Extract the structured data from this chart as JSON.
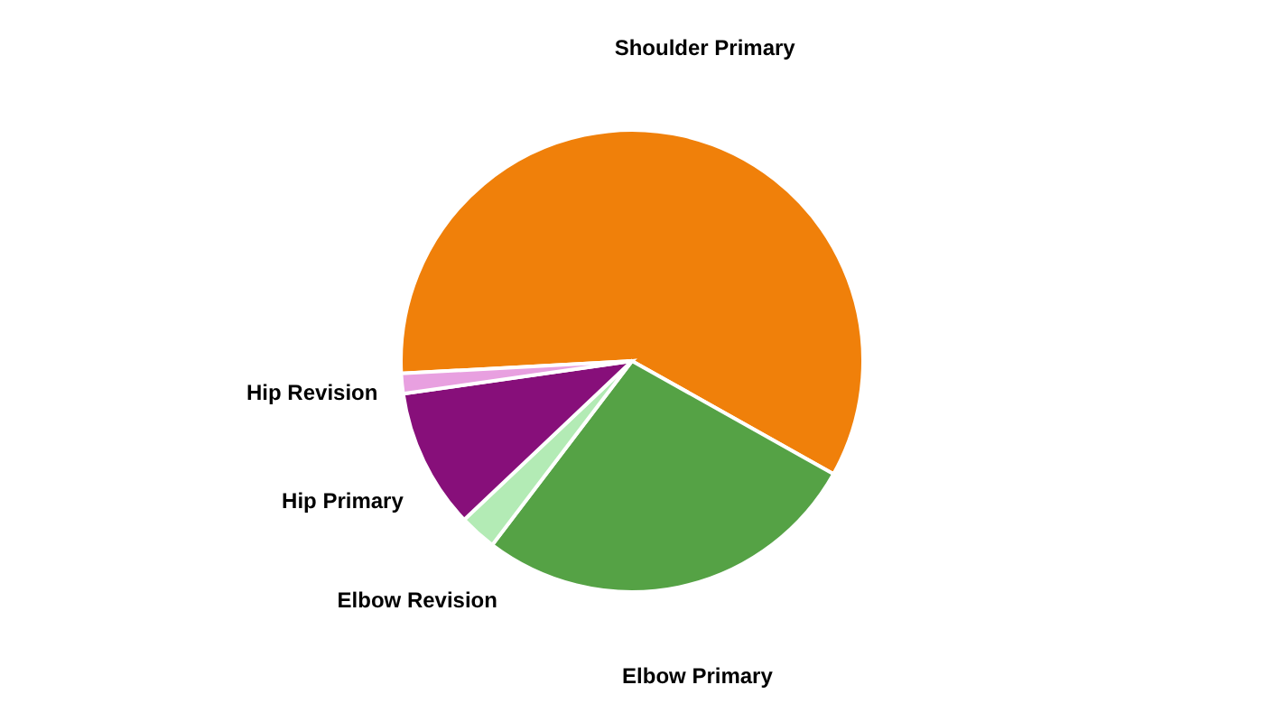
{
  "chart_data": {
    "type": "pie",
    "categories": [
      "Shoulder Primary",
      "Elbow Primary",
      "Elbow Revision",
      "Hip Primary",
      "Hip Revision"
    ],
    "values": [
      59,
      27.2,
      2.6,
      9.8,
      1.4
    ],
    "colors": [
      "#f0800a",
      "#55a245",
      "#b3ebb5",
      "#870f7a",
      "#e8a0e0"
    ],
    "legend": false
  }
}
